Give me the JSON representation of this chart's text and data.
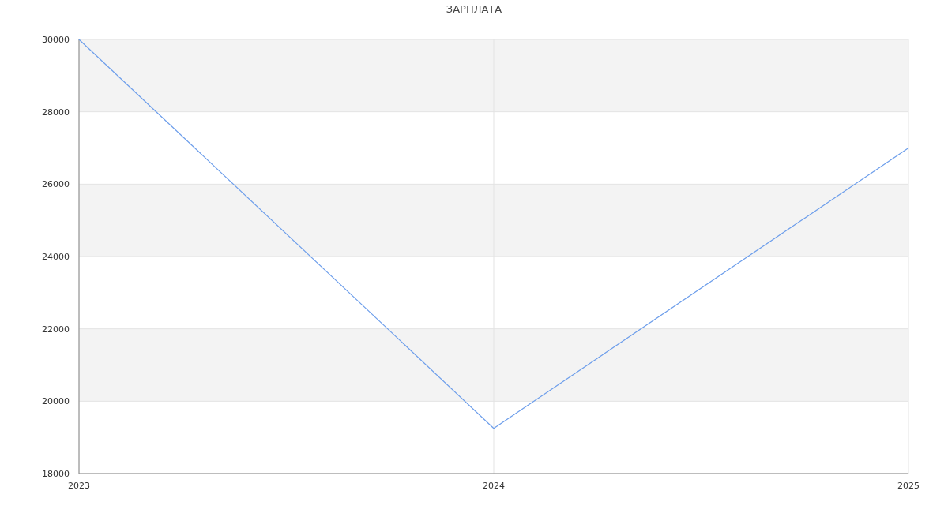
{
  "chart_data": {
    "type": "line",
    "title": "ЗАРПЛАТА",
    "x": [
      2023,
      2024,
      2025
    ],
    "series": [
      {
        "color": "#6d9eeb",
        "values": [
          30000,
          19250,
          27000
        ]
      }
    ],
    "xlim": [
      2023,
      2025
    ],
    "xticks": [
      2023,
      2024,
      2025
    ],
    "ylim": [
      18000,
      30000
    ],
    "yticks": [
      18000,
      20000,
      22000,
      24000,
      26000,
      28000,
      30000
    ],
    "grid": true,
    "marker": "none"
  }
}
